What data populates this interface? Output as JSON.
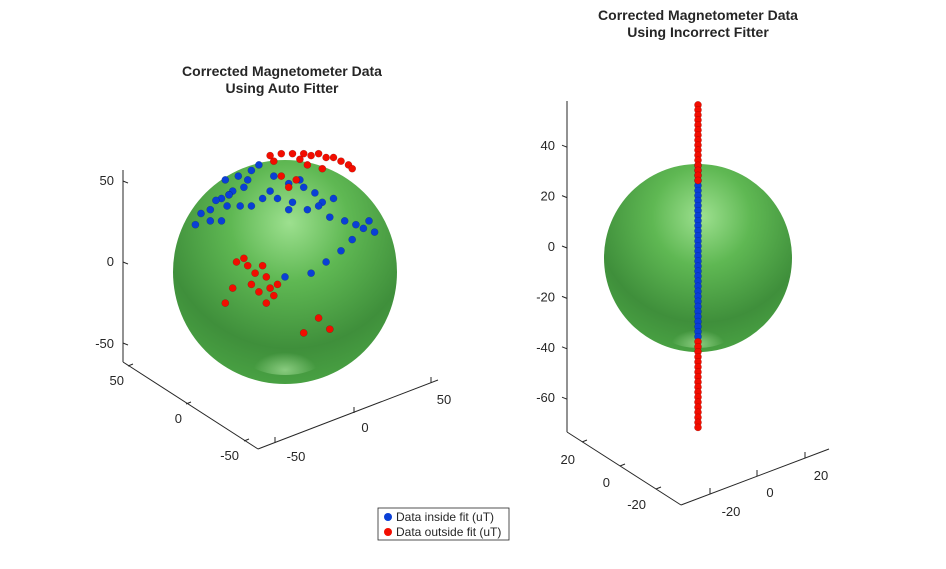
{
  "colors": {
    "sphere_light": "#9de08f",
    "sphere_mid": "#4ca844",
    "sphere_dark": "#2f7a2e",
    "inside": "#0a3fd6",
    "outside": "#f20d00"
  },
  "legend": {
    "inside_label": "Data inside fit (uT)",
    "outside_label": "Data outside fit (uT)"
  },
  "chart_data": [
    {
      "type": "scatter",
      "title": [
        "Corrected Magnetometer Data",
        "Using Auto Fitter"
      ],
      "view": "3d",
      "surface": "sphere",
      "sphere_radius": 50,
      "axis_ticks": {
        "z": [
          "50",
          "0",
          "-50"
        ],
        "y": [
          "50",
          "0",
          "-50"
        ],
        "x": [
          "50",
          "0",
          "-50"
        ]
      },
      "series": [
        {
          "name": "Data inside fit (uT)",
          "color": "#0a3fd6",
          "points": [
            [
              -14,
              52
            ],
            [
              -18,
              49
            ],
            [
              -25,
              46
            ],
            [
              -32,
              44
            ],
            [
              -22,
              40
            ],
            [
              -28,
              38
            ],
            [
              -30,
              36
            ],
            [
              -34,
              34
            ],
            [
              -37,
              33
            ],
            [
              -31,
              30
            ],
            [
              -24,
              30
            ],
            [
              -40,
              28
            ],
            [
              -45,
              26
            ],
            [
              -40,
              22
            ],
            [
              -48,
              20
            ],
            [
              -34,
              22
            ],
            [
              -30,
              36
            ],
            [
              -20,
              44
            ],
            [
              -6,
              46
            ],
            [
              2,
              42
            ],
            [
              10,
              40
            ],
            [
              16,
              37
            ],
            [
              20,
              32
            ],
            [
              26,
              34
            ],
            [
              18,
              30
            ],
            [
              12,
              28
            ],
            [
              24,
              24
            ],
            [
              32,
              22
            ],
            [
              38,
              20
            ],
            [
              42,
              18
            ],
            [
              45,
              22
            ],
            [
              48,
              16
            ],
            [
              36,
              12
            ],
            [
              30,
              6
            ],
            [
              22,
              0
            ],
            [
              14,
              -6
            ],
            [
              -18,
              30
            ],
            [
              -12,
              34
            ],
            [
              -4,
              34
            ],
            [
              4,
              32
            ],
            [
              2,
              28
            ],
            [
              0,
              -8
            ],
            [
              -8,
              38
            ],
            [
              8,
              44
            ]
          ]
        },
        {
          "name": "Data outside fit (uT)",
          "color": "#f20d00",
          "points": [
            [
              -2,
              58
            ],
            [
              4,
              58
            ],
            [
              10,
              58
            ],
            [
              14,
              57
            ],
            [
              18,
              58
            ],
            [
              22,
              56
            ],
            [
              26,
              56
            ],
            [
              30,
              54
            ],
            [
              34,
              52
            ],
            [
              36,
              50
            ],
            [
              -6,
              54
            ],
            [
              -8,
              57
            ],
            [
              8,
              55
            ],
            [
              12,
              52
            ],
            [
              20,
              50
            ],
            [
              -22,
              2
            ],
            [
              -26,
              0
            ],
            [
              -20,
              -2
            ],
            [
              -28,
              -14
            ],
            [
              -12,
              -2
            ],
            [
              -16,
              -6
            ],
            [
              -10,
              -8
            ],
            [
              -18,
              -12
            ],
            [
              -8,
              -14
            ],
            [
              -14,
              -16
            ],
            [
              -4,
              -12
            ],
            [
              -6,
              -18
            ],
            [
              -10,
              -22
            ],
            [
              -32,
              -22
            ],
            [
              10,
              -38
            ],
            [
              18,
              -30
            ],
            [
              24,
              -36
            ],
            [
              2,
              40
            ],
            [
              6,
              44
            ],
            [
              -2,
              46
            ]
          ]
        }
      ]
    },
    {
      "type": "scatter",
      "title": [
        "Corrected Magnetometer Data",
        "Using Incorrect Fitter"
      ],
      "view": "3d",
      "surface": "sphere",
      "sphere_radius": 38,
      "axis_ticks": {
        "z": [
          "40",
          "20",
          "0",
          "-20",
          "-40",
          "-60"
        ],
        "y": [
          "20",
          "0",
          "-20"
        ],
        "x": [
          "20",
          "0",
          "-20"
        ]
      },
      "series": [
        {
          "name": "Data inside fit (uT)",
          "color": "#0a3fd6",
          "z": [
            32,
            30,
            28,
            26,
            24,
            22,
            20,
            18,
            16,
            14,
            12,
            10,
            8,
            6,
            4,
            2,
            0,
            -2,
            -4,
            -6,
            -8,
            -10,
            -12,
            -14,
            -16,
            -18,
            -20,
            -22,
            -24,
            -26,
            -28,
            -30,
            -32,
            -34,
            -36
          ]
        },
        {
          "name": "Data outside fit (uT)",
          "color": "#f20d00",
          "z": [
            56,
            54,
            52,
            50,
            48,
            46,
            44,
            42,
            40,
            38,
            36,
            34,
            32,
            30,
            28,
            26,
            -38,
            -40,
            -42,
            -44,
            -46,
            -48,
            -50,
            -52,
            -54,
            -56,
            -58,
            -60,
            -62,
            -64,
            -66,
            -68,
            -70,
            -72
          ]
        }
      ]
    }
  ]
}
